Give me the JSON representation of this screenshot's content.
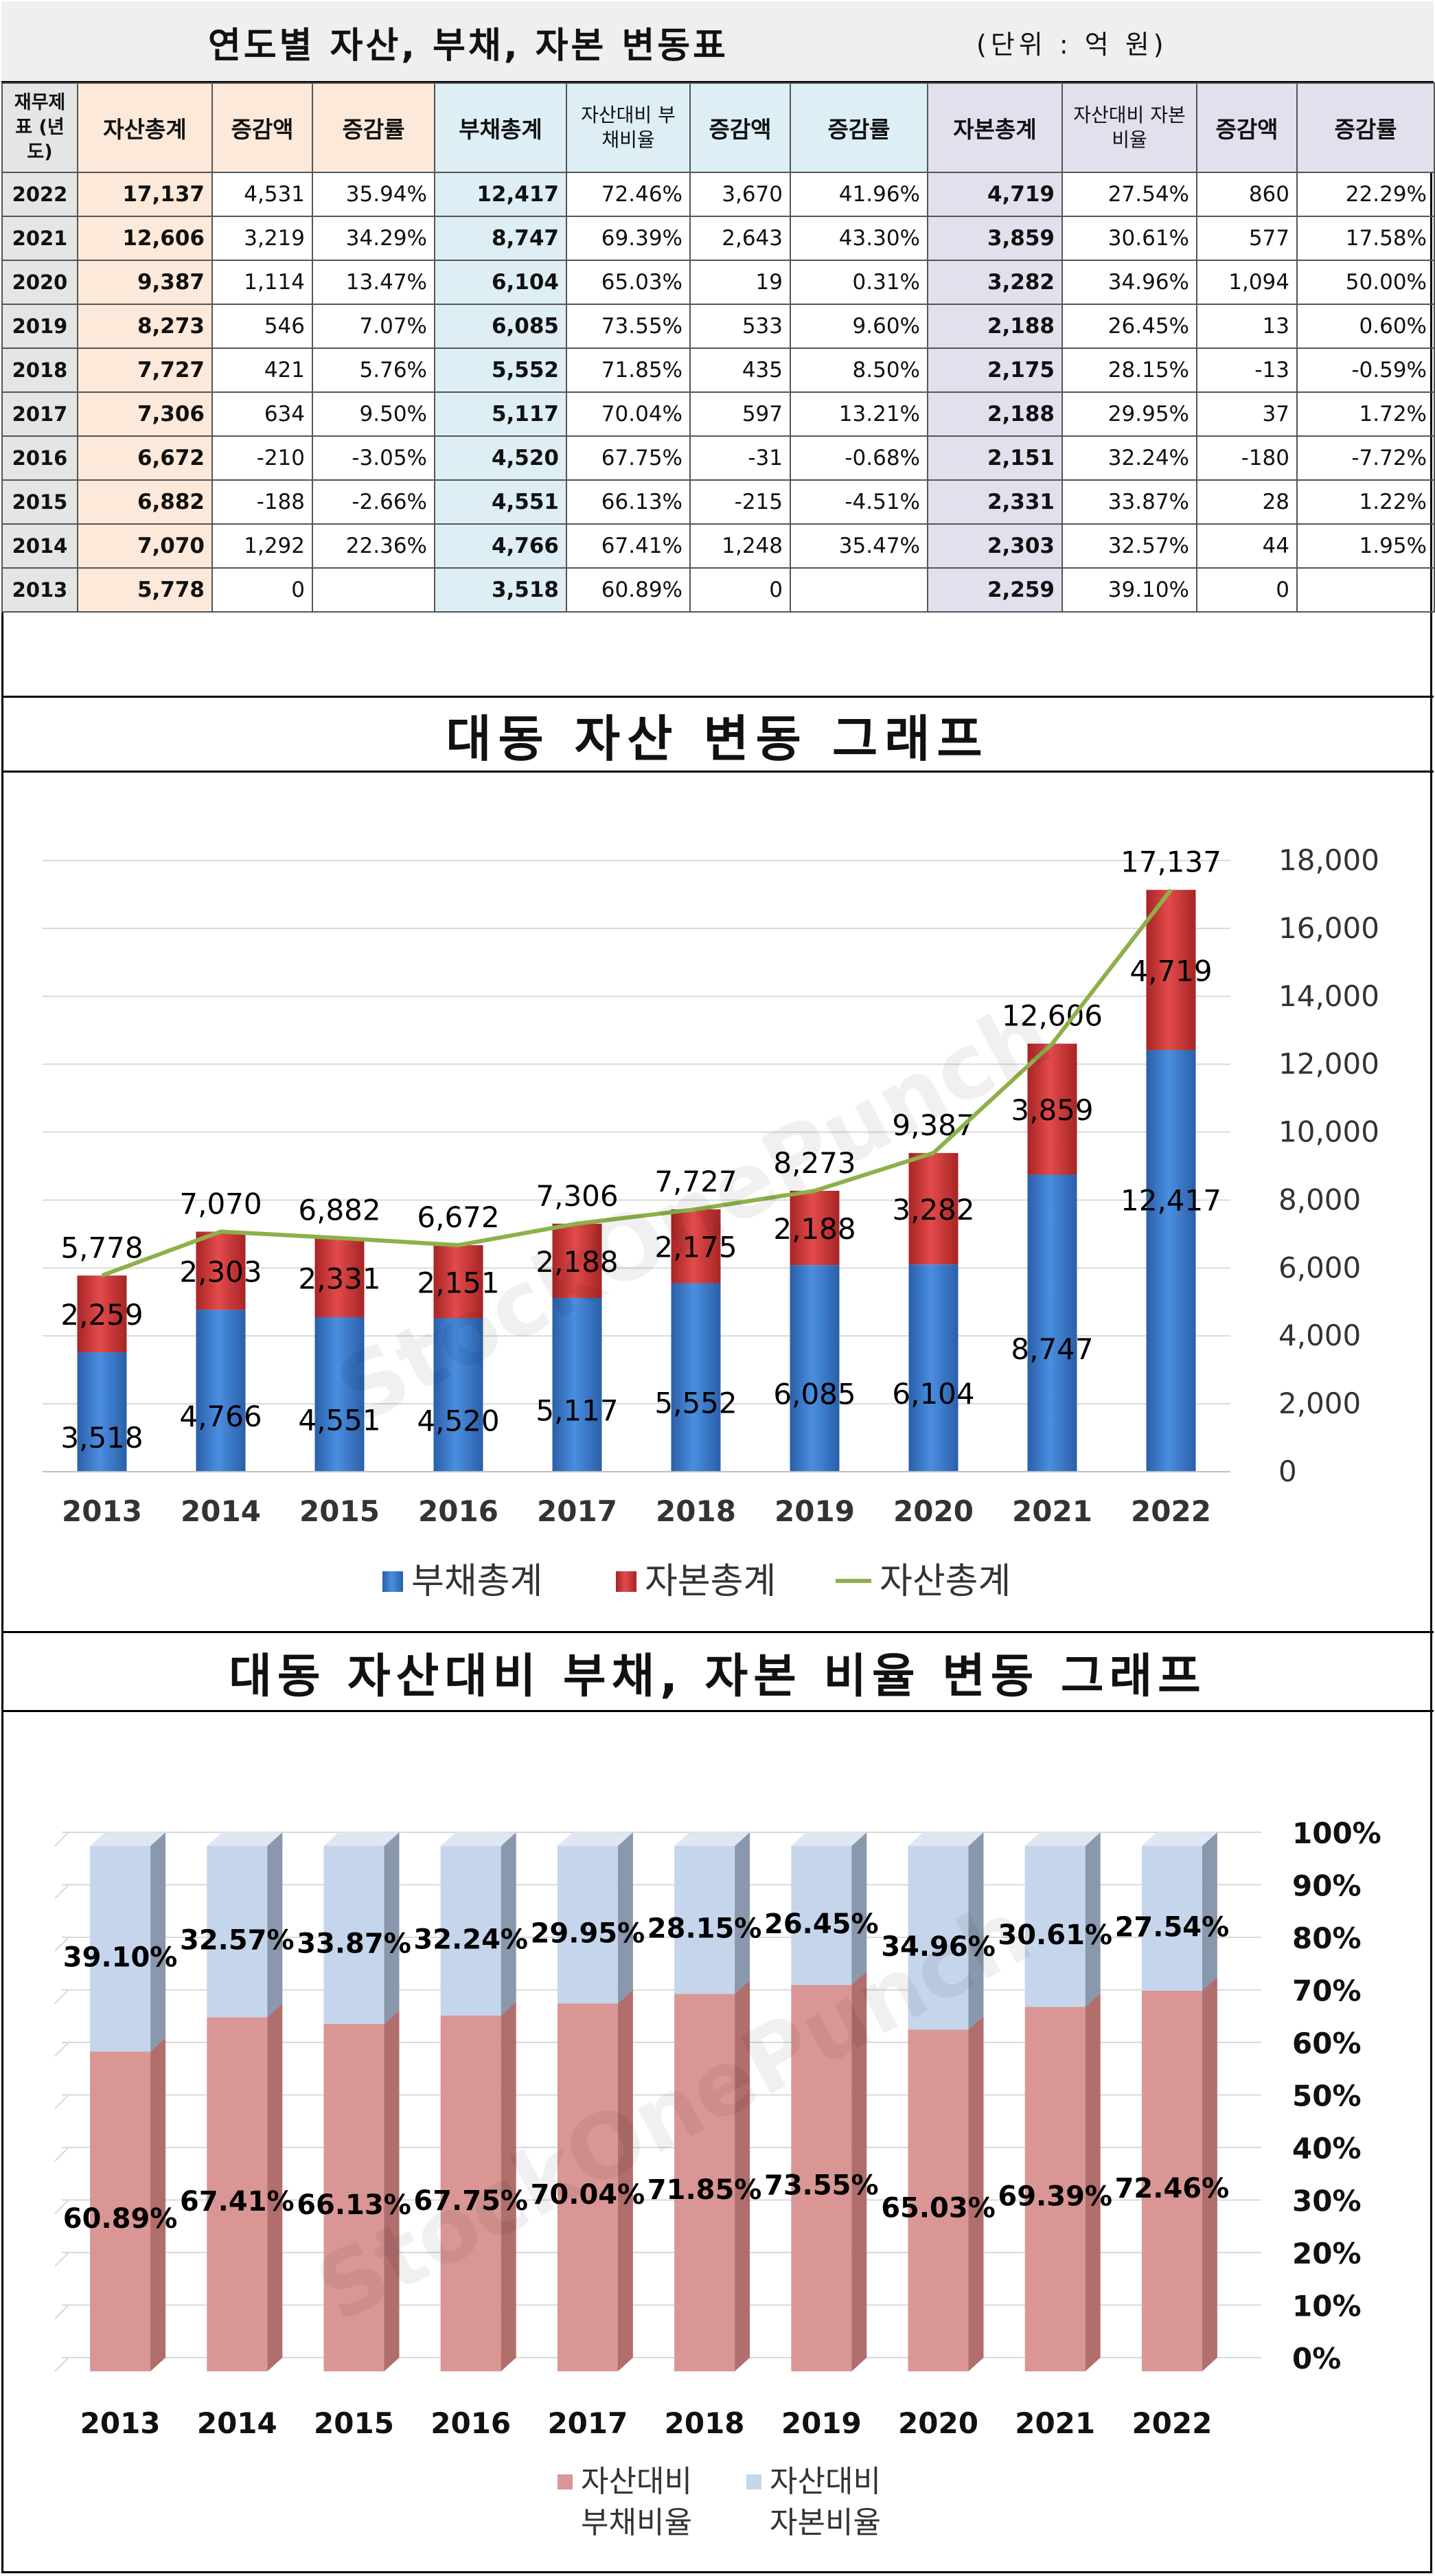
{
  "table": {
    "title": "연도별 자산, 부채, 자본 변동표",
    "unit": "(단위 : 억 원)",
    "headers": {
      "year": "재무제표 (년도)",
      "asset_total": "자산총계",
      "asset_change": "증감액",
      "asset_rate": "증감률",
      "liab_total": "부채총계",
      "liab_ratio": "자산대비 부채비율",
      "liab_change": "증감액",
      "liab_rate": "증감률",
      "cap_total": "자본총계",
      "cap_ratio": "자산대비 자본비율",
      "cap_change": "증감액",
      "cap_rate": "증감률"
    },
    "rows": [
      {
        "year": "2022",
        "asset": "17,137",
        "a_chg": "4,531",
        "a_rate": "35.94%",
        "liab": "12,417",
        "l_ratio": "72.46%",
        "l_chg": "3,670",
        "l_rate": "41.96%",
        "cap": "4,719",
        "c_ratio": "27.54%",
        "c_chg": "860",
        "c_rate": "22.29%"
      },
      {
        "year": "2021",
        "asset": "12,606",
        "a_chg": "3,219",
        "a_rate": "34.29%",
        "liab": "8,747",
        "l_ratio": "69.39%",
        "l_chg": "2,643",
        "l_rate": "43.30%",
        "cap": "3,859",
        "c_ratio": "30.61%",
        "c_chg": "577",
        "c_rate": "17.58%"
      },
      {
        "year": "2020",
        "asset": "9,387",
        "a_chg": "1,114",
        "a_rate": "13.47%",
        "liab": "6,104",
        "l_ratio": "65.03%",
        "l_chg": "19",
        "l_rate": "0.31%",
        "cap": "3,282",
        "c_ratio": "34.96%",
        "c_chg": "1,094",
        "c_rate": "50.00%"
      },
      {
        "year": "2019",
        "asset": "8,273",
        "a_chg": "546",
        "a_rate": "7.07%",
        "liab": "6,085",
        "l_ratio": "73.55%",
        "l_chg": "533",
        "l_rate": "9.60%",
        "cap": "2,188",
        "c_ratio": "26.45%",
        "c_chg": "13",
        "c_rate": "0.60%"
      },
      {
        "year": "2018",
        "asset": "7,727",
        "a_chg": "421",
        "a_rate": "5.76%",
        "liab": "5,552",
        "l_ratio": "71.85%",
        "l_chg": "435",
        "l_rate": "8.50%",
        "cap": "2,175",
        "c_ratio": "28.15%",
        "c_chg": "-13",
        "c_rate": "-0.59%"
      },
      {
        "year": "2017",
        "asset": "7,306",
        "a_chg": "634",
        "a_rate": "9.50%",
        "liab": "5,117",
        "l_ratio": "70.04%",
        "l_chg": "597",
        "l_rate": "13.21%",
        "cap": "2,188",
        "c_ratio": "29.95%",
        "c_chg": "37",
        "c_rate": "1.72%"
      },
      {
        "year": "2016",
        "asset": "6,672",
        "a_chg": "-210",
        "a_rate": "-3.05%",
        "liab": "4,520",
        "l_ratio": "67.75%",
        "l_chg": "-31",
        "l_rate": "-0.68%",
        "cap": "2,151",
        "c_ratio": "32.24%",
        "c_chg": "-180",
        "c_rate": "-7.72%"
      },
      {
        "year": "2015",
        "asset": "6,882",
        "a_chg": "-188",
        "a_rate": "-2.66%",
        "liab": "4,551",
        "l_ratio": "66.13%",
        "l_chg": "-215",
        "l_rate": "-4.51%",
        "cap": "2,331",
        "c_ratio": "33.87%",
        "c_chg": "28",
        "c_rate": "1.22%"
      },
      {
        "year": "2014",
        "asset": "7,070",
        "a_chg": "1,292",
        "a_rate": "22.36%",
        "liab": "4,766",
        "l_ratio": "67.41%",
        "l_chg": "1,248",
        "l_rate": "35.47%",
        "cap": "2,303",
        "c_ratio": "32.57%",
        "c_chg": "44",
        "c_rate": "1.95%"
      },
      {
        "year": "2013",
        "asset": "5,778",
        "a_chg": "0",
        "a_rate": "",
        "liab": "3,518",
        "l_ratio": "60.89%",
        "l_chg": "0",
        "l_rate": "",
        "cap": "2,259",
        "c_ratio": "39.10%",
        "c_chg": "0",
        "c_rate": ""
      }
    ]
  },
  "watermark": "StockOnePunch",
  "colors": {
    "liab": "#3a78c9",
    "cap": "#d33b3b",
    "line": "#8db04a",
    "ratio_liab": "#d99694",
    "ratio_cap": "#c5d5ec"
  },
  "chart_data": [
    {
      "type": "bar",
      "stacked": true,
      "title": "대동 자산 변동 그래프",
      "categories": [
        "2013",
        "2014",
        "2015",
        "2016",
        "2017",
        "2018",
        "2019",
        "2020",
        "2021",
        "2022"
      ],
      "series": [
        {
          "name": "부채총계",
          "kind": "bar",
          "values": [
            3518,
            4766,
            4551,
            4520,
            5117,
            5552,
            6085,
            6104,
            8747,
            12417
          ]
        },
        {
          "name": "자본총계",
          "kind": "bar",
          "values": [
            2259,
            2303,
            2331,
            2151,
            2188,
            2175,
            2188,
            3282,
            3859,
            4719
          ]
        },
        {
          "name": "자산총계",
          "kind": "line",
          "values": [
            5778,
            7070,
            6882,
            6672,
            7306,
            7727,
            8273,
            9387,
            12606,
            17137
          ]
        }
      ],
      "ylim": [
        0,
        18000
      ],
      "yticks": [
        "0",
        "2,000",
        "4,000",
        "6,000",
        "8,000",
        "10,000",
        "12,000",
        "14,000",
        "16,000",
        "18,000"
      ],
      "yticks_values": [
        0,
        2000,
        4000,
        6000,
        8000,
        10000,
        12000,
        14000,
        16000,
        18000
      ],
      "legend": "bottom",
      "grid": true
    },
    {
      "type": "bar",
      "stacked": true,
      "percent": true,
      "title": "대동 자산대비 부채, 자본 비율 변동 그래프",
      "categories": [
        "2013",
        "2014",
        "2015",
        "2016",
        "2017",
        "2018",
        "2019",
        "2020",
        "2021",
        "2022"
      ],
      "series": [
        {
          "name": "자산대비 부채비율",
          "values": [
            60.89,
            67.41,
            66.13,
            67.75,
            70.04,
            71.85,
            73.55,
            65.03,
            69.39,
            72.46
          ]
        },
        {
          "name": "자산대비 자본비율",
          "values": [
            39.1,
            32.57,
            33.87,
            32.24,
            29.95,
            28.15,
            26.45,
            34.96,
            30.61,
            27.54
          ]
        }
      ],
      "ylim": [
        0,
        100
      ],
      "yticks": [
        "0%",
        "10%",
        "20%",
        "30%",
        "40%",
        "50%",
        "60%",
        "70%",
        "80%",
        "90%",
        "100%"
      ],
      "yticks_values": [
        0,
        10,
        20,
        30,
        40,
        50,
        60,
        70,
        80,
        90,
        100
      ],
      "legend_lines": [
        [
          "자산대비",
          "부채비율"
        ],
        [
          "자산대비",
          "자본비율"
        ]
      ],
      "legend": "bottom",
      "grid": true
    }
  ]
}
